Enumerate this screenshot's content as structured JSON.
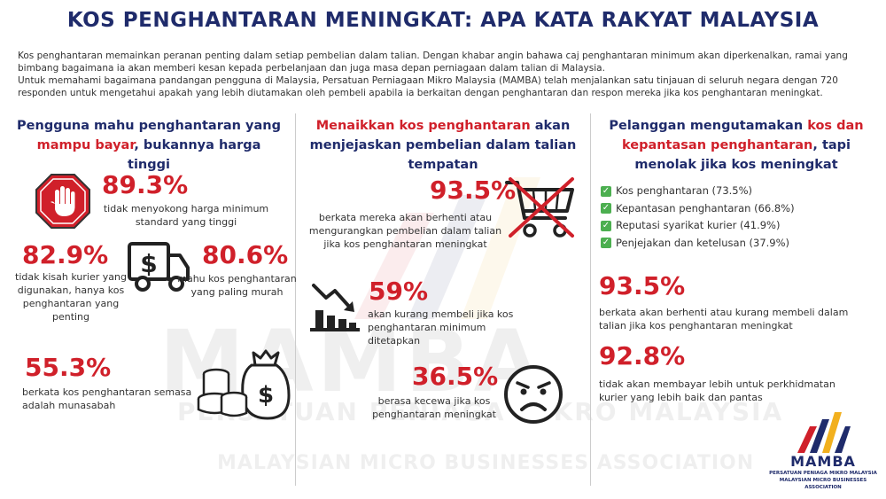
{
  "title": "KOS PENGHANTARAN MENINGKAT: APA KATA RAKYAT MALAYSIA",
  "intro": {
    "p1": "Kos penghantaran memainkan peranan penting dalam setiap pembelian dalam talian. Dengan khabar angin bahawa caj penghantaran minimum akan diperkenalkan, ramai yang bimbang bagaimana ia akan memberi kesan kepada perbelanjaan dan juga masa depan perniagaan dalam talian di Malaysia.",
    "p2": "Untuk memahami bagaimana pandangan pengguna di Malaysia, Persatuan Perniagaan Mikro Malaysia (MAMBA) telah menjalankan satu tinjauan di seluruh negara dengan 720 responden untuk mengetahui apakah yang lebih diutamakan oleh pembeli apabila ia berkaitan dengan penghantaran dan respon mereka jika kos penghantaran meningkat."
  },
  "watermark": {
    "brand": "MAMBA",
    "malay": "PERSATUAN PENIAGA MIKRO MALAYSIA",
    "english": "MALAYSIAN MICRO BUSINESSES ASSOCIATION"
  },
  "col1": {
    "head_a": "Pengguna mahu penghantaran yang",
    "head_red": "mampu bayar",
    "head_b": ", bukannya harga tinggi",
    "s1": {
      "value": "89.3%",
      "text": "tidak menyokong harga minimum standard yang tinggi"
    },
    "s2": {
      "value": "82.9%",
      "text": "tidak kisah kurier yang digunakan, hanya kos penghantaran yang penting"
    },
    "s3": {
      "value": "80.6%",
      "text": "mahu kos penghantaran yang paling murah"
    },
    "s4": {
      "value": "55.3%",
      "text": "berkata kos penghantaran semasa adalah munasabah"
    },
    "truck_symbol": "$"
  },
  "col2": {
    "head_red": "Menaikkan kos penghantaran",
    "head_b": " akan menjejaskan pembelian dalam talian tempatan",
    "s1": {
      "value": "93.5%",
      "text": "berkata mereka akan berhenti atau mengurangkan pembelian dalam talian jika kos penghantaran meningkat"
    },
    "s2": {
      "value": "59%",
      "text": "akan kurang membeli jika kos penghantaran minimum ditetapkan"
    },
    "s3": {
      "value": "36.5%",
      "text": "berasa kecewa jika kos penghantaran meningkat"
    }
  },
  "col3": {
    "head_a": "Pelanggan mengutamakan ",
    "head_red": "kos dan kepantasan penghantaran",
    "head_b": ", tapi menolak jika kos meningkat",
    "checks": [
      "Kos penghantaran (73.5%)",
      "Kepantasan penghantaran (66.8%)",
      "Reputasi syarikat kurier (41.9%)",
      "Penjejakan dan ketelusan (37.9%)"
    ],
    "s1": {
      "value": "93.5%",
      "text": "berkata akan berhenti atau kurang membeli dalam talian jika kos penghantaran meningkat"
    },
    "s2": {
      "value": "92.8%",
      "text": "tidak akan membayar lebih untuk perkhidmatan kurier yang lebih baik dan pantas"
    }
  },
  "logo": {
    "name": "MAMBA",
    "sub1": "PERSATUAN PENIAGA MIKRO MALAYSIA",
    "sub2": "MALAYSIAN MICRO BUSINESSES ASSOCIATION"
  },
  "colors": {
    "navy": "#1f2b6b",
    "red": "#d0202a",
    "green": "#4caf50",
    "gold": "#f2b01e"
  },
  "icons": [
    "stop-hand-icon",
    "delivery-truck-icon",
    "money-bag-coins-icon",
    "cancelled-cart-icon",
    "declining-chart-icon",
    "frown-face-icon",
    "check-icon"
  ]
}
